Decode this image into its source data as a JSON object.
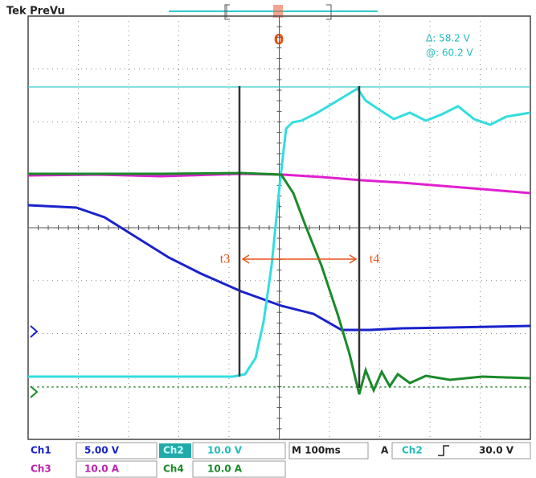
{
  "header": {
    "title": "Tek PreVu",
    "trigger_marker": "0"
  },
  "readout": {
    "delta": "Δ: 58.2 V",
    "at": "@: 60.2 V"
  },
  "cursors": {
    "left": "t3",
    "right": "t4"
  },
  "status": {
    "ch1": {
      "label": "Ch1",
      "scale": "5.00 V"
    },
    "ch2": {
      "label": "Ch2",
      "scale": "10.0 V"
    },
    "ch3": {
      "label": "Ch3",
      "scale": "10.0 A"
    },
    "ch4": {
      "label": "Ch4",
      "scale": "10.0 A"
    },
    "timebase": "M 100ms",
    "trigger_source": "A",
    "trigger_channel": "Ch2",
    "trigger_level": "30.0 V"
  }
}
